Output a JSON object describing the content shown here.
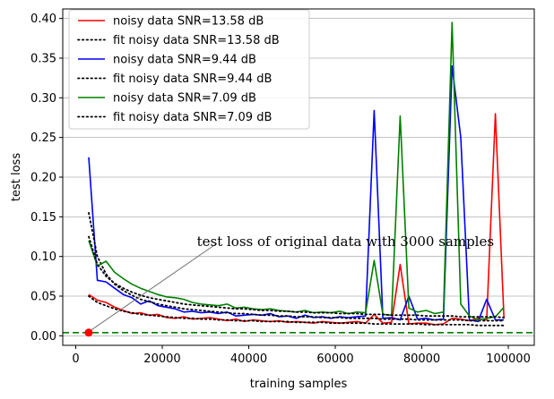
{
  "chart_data": {
    "type": "line",
    "xlabel": "training samples",
    "ylabel": "test loss",
    "xlim": [
      -3000,
      106000
    ],
    "ylim": [
      -0.012,
      0.412
    ],
    "xticks": [
      0,
      20000,
      40000,
      60000,
      80000,
      100000
    ],
    "yticks": [
      0.0,
      0.05,
      0.1,
      0.15,
      0.2,
      0.25,
      0.3,
      0.35,
      0.4
    ],
    "xtick_labels": [
      "0",
      "20000",
      "40000",
      "60000",
      "80000",
      "100000"
    ],
    "ytick_labels": [
      "0.00",
      "0.05",
      "0.10",
      "0.15",
      "0.20",
      "0.25",
      "0.30",
      "0.35",
      "0.40"
    ],
    "grid": "horizontal",
    "legend_position": "top-left",
    "reference_line": {
      "y": 0.004,
      "color": "#008000",
      "style": "dashed"
    },
    "reference_point": {
      "x": 3000,
      "y": 0.004,
      "color": "#ff0000"
    },
    "annotation": {
      "text": "test loss of original data with 3000 samples",
      "point_x": 3000,
      "point_y": 0.004,
      "text_x": 28000,
      "text_y": 0.113
    },
    "series": [
      {
        "name": "noisy data SNR=13.58 dB",
        "color": "#ff0000",
        "style": "solid",
        "x": [
          3000,
          5000,
          7000,
          9000,
          11000,
          13000,
          15000,
          17000,
          19000,
          21000,
          23000,
          25000,
          27000,
          29000,
          31000,
          33000,
          35000,
          37000,
          39000,
          41000,
          43000,
          45000,
          47000,
          49000,
          51000,
          53000,
          55000,
          57000,
          59000,
          61000,
          63000,
          65000,
          67000,
          69000,
          71000,
          73000,
          75000,
          77000,
          79000,
          81000,
          83000,
          85000,
          87000,
          89000,
          91000,
          93000,
          95000,
          97000,
          99000
        ],
        "y": [
          0.052,
          0.045,
          0.042,
          0.036,
          0.032,
          0.028,
          0.029,
          0.026,
          0.027,
          0.023,
          0.022,
          0.024,
          0.021,
          0.022,
          0.023,
          0.021,
          0.019,
          0.021,
          0.018,
          0.02,
          0.019,
          0.018,
          0.019,
          0.017,
          0.018,
          0.017,
          0.016,
          0.018,
          0.017,
          0.016,
          0.017,
          0.018,
          0.016,
          0.027,
          0.016,
          0.017,
          0.09,
          0.015,
          0.016,
          0.016,
          0.014,
          0.015,
          0.022,
          0.021,
          0.019,
          0.022,
          0.02,
          0.28,
          0.022
        ]
      },
      {
        "name": "fit noisy data SNR=13.58 dB",
        "color": "#000000",
        "style": "dotted",
        "x": [
          3000,
          5000,
          7000,
          9000,
          11000,
          13000,
          15000,
          17000,
          19000,
          21000,
          23000,
          25000,
          27000,
          29000,
          31000,
          33000,
          35000,
          37000,
          39000,
          41000,
          43000,
          45000,
          47000,
          49000,
          51000,
          53000,
          55000,
          57000,
          59000,
          61000,
          63000,
          65000,
          67000,
          69000,
          71000,
          73000,
          75000,
          77000,
          79000,
          81000,
          83000,
          85000,
          87000,
          89000,
          91000,
          93000,
          95000,
          97000,
          99000
        ],
        "y": [
          0.05,
          0.042,
          0.038,
          0.034,
          0.031,
          0.029,
          0.027,
          0.026,
          0.025,
          0.024,
          0.023,
          0.022,
          0.022,
          0.021,
          0.021,
          0.02,
          0.02,
          0.019,
          0.019,
          0.019,
          0.018,
          0.018,
          0.018,
          0.018,
          0.017,
          0.017,
          0.017,
          0.017,
          0.016,
          0.016,
          0.016,
          0.016,
          0.016,
          0.015,
          0.015,
          0.015,
          0.015,
          0.015,
          0.015,
          0.014,
          0.014,
          0.014,
          0.014,
          0.014,
          0.014,
          0.013,
          0.013,
          0.013,
          0.013
        ]
      },
      {
        "name": "noisy data SNR=9.44 dB",
        "color": "#0000ff",
        "style": "solid",
        "x": [
          3000,
          5000,
          7000,
          9000,
          11000,
          13000,
          15000,
          17000,
          19000,
          21000,
          23000,
          25000,
          27000,
          29000,
          31000,
          33000,
          35000,
          37000,
          39000,
          41000,
          43000,
          45000,
          47000,
          49000,
          51000,
          53000,
          55000,
          57000,
          59000,
          61000,
          63000,
          65000,
          67000,
          69000,
          71000,
          73000,
          75000,
          77000,
          79000,
          81000,
          83000,
          85000,
          87000,
          89000,
          91000,
          93000,
          95000,
          97000,
          99000
        ],
        "y": [
          0.225,
          0.07,
          0.068,
          0.06,
          0.052,
          0.048,
          0.04,
          0.044,
          0.038,
          0.036,
          0.034,
          0.03,
          0.031,
          0.029,
          0.03,
          0.028,
          0.03,
          0.025,
          0.026,
          0.027,
          0.026,
          0.028,
          0.024,
          0.025,
          0.022,
          0.026,
          0.023,
          0.024,
          0.022,
          0.024,
          0.023,
          0.024,
          0.025,
          0.284,
          0.022,
          0.023,
          0.02,
          0.05,
          0.021,
          0.022,
          0.02,
          0.021,
          0.34,
          0.25,
          0.02,
          0.018,
          0.046,
          0.02,
          0.02
        ]
      },
      {
        "name": "fit noisy data SNR=9.44 dB",
        "color": "#000000",
        "style": "dotted",
        "x": [
          3000,
          5000,
          7000,
          9000,
          11000,
          13000,
          15000,
          17000,
          19000,
          21000,
          23000,
          25000,
          27000,
          29000,
          31000,
          33000,
          35000,
          37000,
          39000,
          41000,
          43000,
          45000,
          47000,
          49000,
          51000,
          53000,
          55000,
          57000,
          59000,
          61000,
          63000,
          65000,
          67000,
          69000,
          71000,
          73000,
          75000,
          77000,
          79000,
          81000,
          83000,
          85000,
          87000,
          89000,
          91000,
          93000,
          95000,
          97000,
          99000
        ],
        "y": [
          0.155,
          0.1,
          0.078,
          0.065,
          0.057,
          0.051,
          0.046,
          0.043,
          0.04,
          0.038,
          0.036,
          0.034,
          0.033,
          0.032,
          0.031,
          0.03,
          0.029,
          0.028,
          0.028,
          0.027,
          0.026,
          0.026,
          0.025,
          0.025,
          0.024,
          0.024,
          0.024,
          0.023,
          0.023,
          0.023,
          0.022,
          0.022,
          0.022,
          0.022,
          0.021,
          0.021,
          0.021,
          0.021,
          0.02,
          0.02,
          0.02,
          0.02,
          0.02,
          0.02,
          0.019,
          0.019,
          0.019,
          0.019,
          0.019
        ]
      },
      {
        "name": "noisy data SNR=7.09 dB",
        "color": "#008000",
        "style": "solid",
        "x": [
          3000,
          5000,
          7000,
          9000,
          11000,
          13000,
          15000,
          17000,
          19000,
          21000,
          23000,
          25000,
          27000,
          29000,
          31000,
          33000,
          35000,
          37000,
          39000,
          41000,
          43000,
          45000,
          47000,
          49000,
          51000,
          53000,
          55000,
          57000,
          59000,
          61000,
          63000,
          65000,
          67000,
          69000,
          71000,
          73000,
          75000,
          77000,
          79000,
          81000,
          83000,
          85000,
          87000,
          89000,
          91000,
          93000,
          95000,
          97000,
          99000
        ],
        "y": [
          0.12,
          0.088,
          0.094,
          0.08,
          0.072,
          0.065,
          0.06,
          0.056,
          0.052,
          0.049,
          0.048,
          0.046,
          0.042,
          0.04,
          0.039,
          0.038,
          0.04,
          0.035,
          0.036,
          0.034,
          0.033,
          0.034,
          0.032,
          0.031,
          0.03,
          0.032,
          0.029,
          0.03,
          0.029,
          0.031,
          0.028,
          0.03,
          0.029,
          0.095,
          0.027,
          0.026,
          0.277,
          0.035,
          0.03,
          0.032,
          0.028,
          0.03,
          0.395,
          0.04,
          0.025,
          0.02,
          0.022,
          0.024,
          0.036
        ]
      },
      {
        "name": "fit noisy data SNR=7.09 dB",
        "color": "#000000",
        "style": "dotted",
        "x": [
          3000,
          5000,
          7000,
          9000,
          11000,
          13000,
          15000,
          17000,
          19000,
          21000,
          23000,
          25000,
          27000,
          29000,
          31000,
          33000,
          35000,
          37000,
          39000,
          41000,
          43000,
          45000,
          47000,
          49000,
          51000,
          53000,
          55000,
          57000,
          59000,
          61000,
          63000,
          65000,
          67000,
          69000,
          71000,
          73000,
          75000,
          77000,
          79000,
          81000,
          83000,
          85000,
          87000,
          89000,
          91000,
          93000,
          95000,
          97000,
          99000
        ],
        "y": [
          0.125,
          0.09,
          0.075,
          0.066,
          0.06,
          0.055,
          0.051,
          0.048,
          0.046,
          0.044,
          0.042,
          0.04,
          0.039,
          0.038,
          0.037,
          0.036,
          0.035,
          0.034,
          0.034,
          0.033,
          0.032,
          0.032,
          0.031,
          0.031,
          0.03,
          0.03,
          0.029,
          0.029,
          0.029,
          0.028,
          0.028,
          0.028,
          0.027,
          0.027,
          0.027,
          0.026,
          0.026,
          0.026,
          0.026,
          0.025,
          0.025,
          0.025,
          0.025,
          0.024,
          0.024,
          0.024,
          0.024,
          0.024,
          0.023
        ]
      }
    ]
  }
}
